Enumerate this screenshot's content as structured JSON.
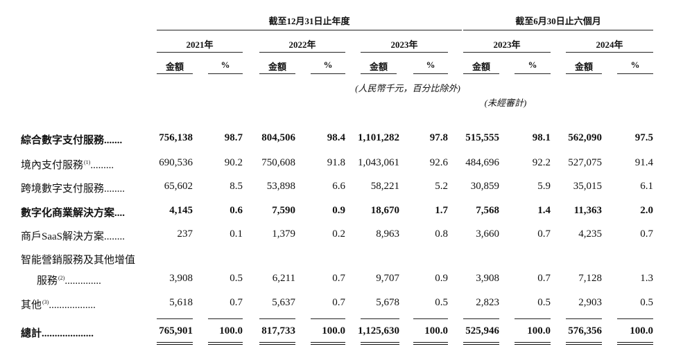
{
  "header": {
    "group1": "截至12月31日止年度",
    "group2": "截至6月30日止六個月",
    "years": [
      "2021年",
      "2022年",
      "2023年",
      "2023年",
      "2024年"
    ],
    "amount_label": "金額",
    "pct_label": "%",
    "currency_note": "(人民幣千元，百分比除外)",
    "unaudited_note": "(未經審計)"
  },
  "rows": [
    {
      "label": "綜合數字支付服務",
      "dots": ".......",
      "bold": true,
      "values": [
        "756,138",
        "98.7",
        "804,506",
        "98.4",
        "1,101,282",
        "97.8",
        "515,555",
        "98.1",
        "562,090",
        "97.5"
      ]
    },
    {
      "label": "境內支付服務",
      "sup": "(1)",
      "dots": ".........",
      "bold": false,
      "values": [
        "690,536",
        "90.2",
        "750,608",
        "91.8",
        "1,043,061",
        "92.6",
        "484,696",
        "92.2",
        "527,075",
        "91.4"
      ]
    },
    {
      "label": "跨境數字支付服務",
      "dots": "........",
      "bold": false,
      "values": [
        "65,602",
        "8.5",
        "53,898",
        "6.6",
        "58,221",
        "5.2",
        "30,859",
        "5.9",
        "35,015",
        "6.1"
      ]
    },
    {
      "label": "數字化商業解決方案",
      "dots": "....",
      "bold": true,
      "values": [
        "4,145",
        "0.6",
        "7,590",
        "0.9",
        "18,670",
        "1.7",
        "7,568",
        "1.4",
        "11,363",
        "2.0"
      ]
    },
    {
      "label": "商戶SaaS解決方案",
      "dots": "........",
      "bold": false,
      "values": [
        "237",
        "0.1",
        "1,379",
        "0.2",
        "8,963",
        "0.8",
        "3,660",
        "0.7",
        "4,235",
        "0.7"
      ]
    },
    {
      "label": "智能營銷服務及其他增值",
      "label2": "服務",
      "sup": "(2)",
      "dots": "..............",
      "bold": false,
      "values": [
        "3,908",
        "0.5",
        "6,211",
        "0.7",
        "9,707",
        "0.9",
        "3,908",
        "0.7",
        "7,128",
        "1.3"
      ]
    },
    {
      "label": "其他",
      "sup": "(3)",
      "dots": "..................",
      "bold": false,
      "values": [
        "5,618",
        "0.7",
        "5,637",
        "0.7",
        "5,678",
        "0.5",
        "2,823",
        "0.5",
        "2,903",
        "0.5"
      ]
    },
    {
      "label": "總計",
      "dots": "....................",
      "bold": true,
      "values": [
        "765,901",
        "100.0",
        "817,733",
        "100.0",
        "1,125,630",
        "100.0",
        "525,946",
        "100.0",
        "576,356",
        "100.0"
      ]
    }
  ]
}
